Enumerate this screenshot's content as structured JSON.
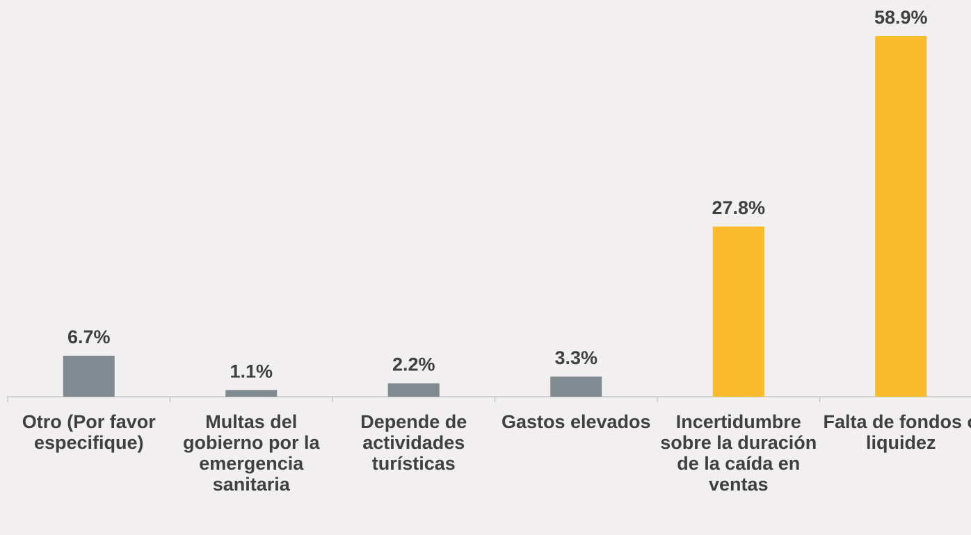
{
  "chart_data": {
    "type": "bar",
    "categories": [
      "Otro (Por favor especifique)",
      "Multas del gobierno por la emergencia sanitaria",
      "Depende de actividades turísticas",
      "Gastos elevados",
      "Incertidumbre sobre la duración de la caída en ventas",
      "Falta de fondos o liquidez"
    ],
    "values": [
      6.7,
      1.1,
      2.2,
      3.3,
      27.8,
      58.9
    ],
    "value_labels": [
      "6.7%",
      "1.1%",
      "2.2%",
      "3.3%",
      "27.8%",
      "58.9%"
    ],
    "colors": [
      "#7f8a91",
      "#7f8a91",
      "#7f8a91",
      "#7f8a91",
      "#fbbc2c",
      "#fbbc2c"
    ],
    "ylim": [
      0,
      60
    ]
  }
}
